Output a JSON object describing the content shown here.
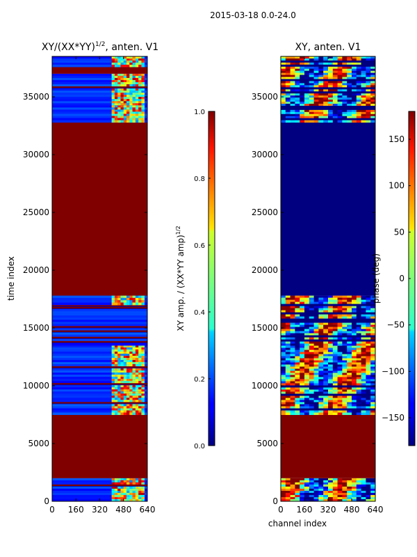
{
  "suptitle": "2015-03-18 0.0-24.0",
  "chart_data": [
    {
      "type": "heatmap",
      "title_base": "XY/(XX*YY)",
      "title_exp": "1/2",
      "title_suffix": ", anten. V1",
      "xlabel": "",
      "ylabel": "time index",
      "xlim": [
        0,
        640
      ],
      "ylim": [
        0,
        38500
      ],
      "xticks": [
        0,
        160,
        320,
        480,
        640
      ],
      "yticks": [
        0,
        5000,
        10000,
        15000,
        20000,
        25000,
        30000,
        35000
      ],
      "colormap": "jet",
      "colorbar": {
        "label_base": "XY amp. / (XX*YY amp)",
        "label_exp": "1/2",
        "range": [
          0.0,
          1.0
        ],
        "ticks": [
          "0.0",
          "0.2",
          "0.4",
          "0.6",
          "0.8",
          "1.0"
        ]
      },
      "segments": [
        {
          "t0": 0,
          "t1": 2000,
          "value": "low",
          "active_channels": [
            400,
            620
          ]
        },
        {
          "t0": 2000,
          "t1": 7500,
          "value": 1.0
        },
        {
          "t0": 7500,
          "t1": 13500,
          "value": "low",
          "active_channels": [
            400,
            620
          ]
        },
        {
          "t0": 13500,
          "t1": 17000,
          "value": "low with flagged rows"
        },
        {
          "t0": 17000,
          "t1": 17800,
          "value": "low",
          "active_channels": [
            400,
            620
          ]
        },
        {
          "t0": 17800,
          "t1": 32800,
          "value": 1.0
        },
        {
          "t0": 32800,
          "t1": 37000,
          "value": "low",
          "active_channels": [
            400,
            620
          ]
        },
        {
          "t0": 37000,
          "t1": 37600,
          "value": 1.0
        },
        {
          "t0": 37600,
          "t1": 38500,
          "value": "low",
          "active_channels": [
            400,
            620
          ]
        }
      ]
    },
    {
      "type": "heatmap",
      "title": "XY, anten. V1",
      "xlabel": "channel index",
      "ylabel": "",
      "xlim": [
        0,
        640
      ],
      "ylim": [
        0,
        38500
      ],
      "xticks": [
        0,
        160,
        320,
        480,
        640
      ],
      "yticks": [
        0,
        5000,
        10000,
        15000,
        20000,
        25000,
        30000,
        35000
      ],
      "colormap": "jet",
      "colorbar": {
        "label": "phase (deg)",
        "range": [
          -180,
          180
        ],
        "ticks": [
          "−150",
          "−100",
          "−50",
          "0",
          "50",
          "100",
          "150"
        ]
      },
      "segments": [
        {
          "t0": 0,
          "t1": 2000,
          "value": "phase varying"
        },
        {
          "t0": 2000,
          "t1": 7500,
          "value": 180
        },
        {
          "t0": 7500,
          "t1": 17800,
          "value": "phase varying with flagged rows"
        },
        {
          "t0": 17800,
          "t1": 32800,
          "value": -180
        },
        {
          "t0": 32800,
          "t1": 38500,
          "value": "phase varying with flagged rows"
        }
      ]
    }
  ]
}
